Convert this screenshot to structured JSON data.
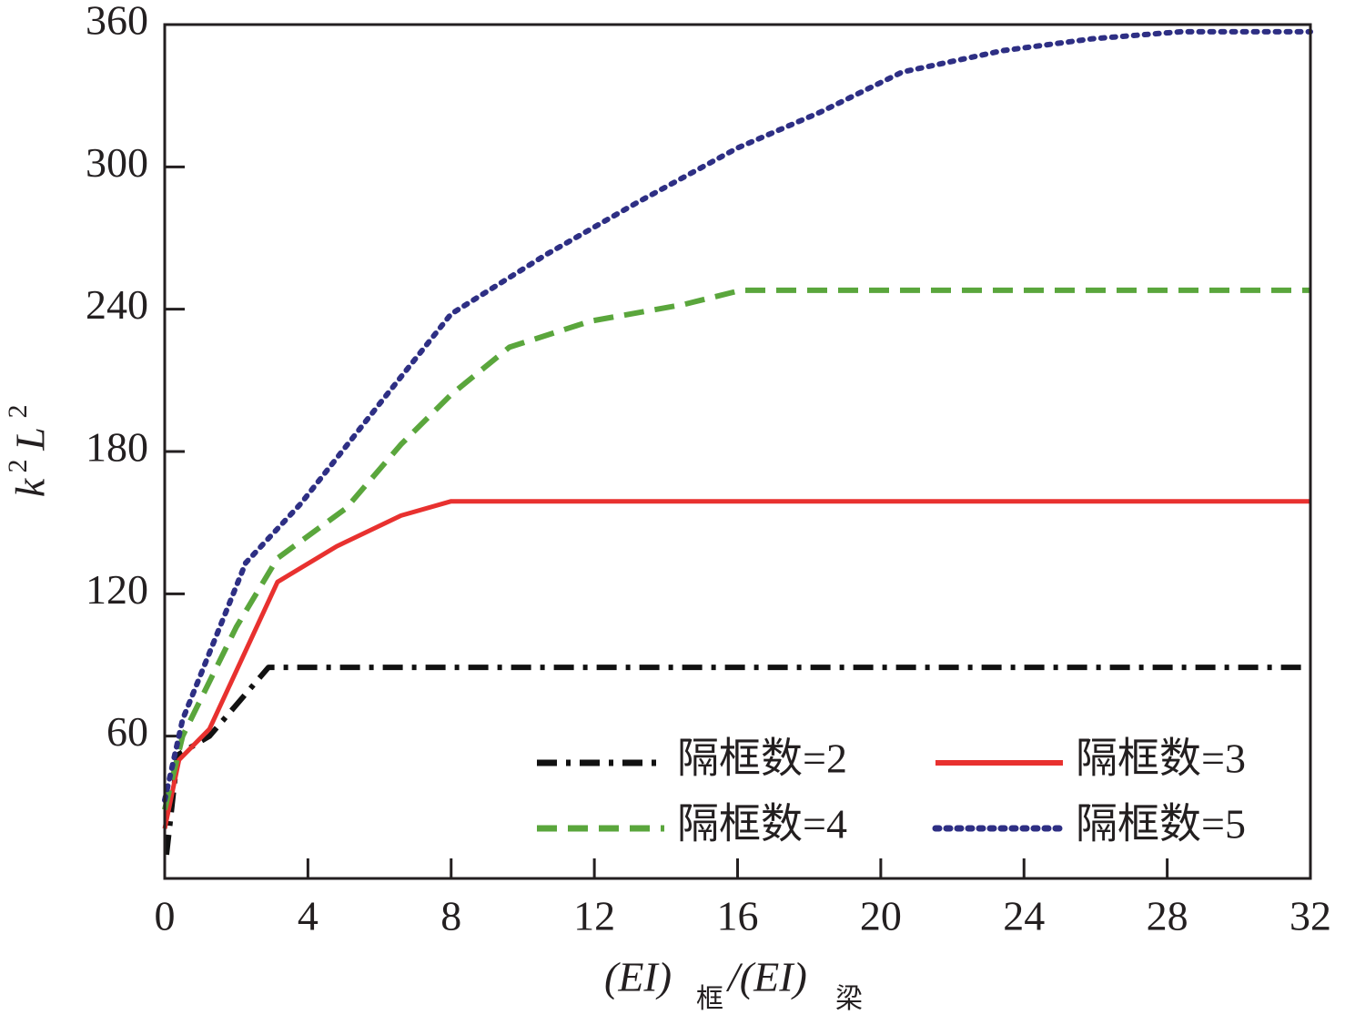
{
  "chart_data": {
    "type": "line",
    "x_label": {
      "part1": "(EI)",
      "sub1": "框",
      "part2": "/(EI)",
      "sub2": "梁"
    },
    "y_label": {
      "base1": "k",
      "sup1": "2",
      "base2": "L",
      "sup2": "2"
    },
    "xlim": [
      0,
      32
    ],
    "xticks": [
      0,
      4,
      8,
      12,
      16,
      20,
      24,
      28,
      32
    ],
    "ylim": [
      0,
      360
    ],
    "yticks": [
      60,
      120,
      180,
      240,
      300,
      360
    ],
    "legend": "lower right",
    "series": [
      {
        "name": "隔框数=2",
        "color": "#111111",
        "dash": "dashdot",
        "x": [
          0.05,
          0.36,
          1.25,
          2.9,
          32
        ],
        "values": [
          10,
          52,
          60,
          89,
          89
        ]
      },
      {
        "name": "隔框数=3",
        "color": "#e8312f",
        "dash": "solid",
        "x": [
          0,
          0.4,
          1.25,
          3.15,
          4.8,
          6.6,
          8,
          32
        ],
        "values": [
          21,
          50,
          63,
          125,
          140,
          153,
          159,
          159
        ]
      },
      {
        "name": "隔框数=4",
        "color": "#5aa63c",
        "dash": "dashed",
        "x": [
          0,
          0.5,
          2,
          3.15,
          5.06,
          6.6,
          8,
          9.63,
          11.9,
          14.5,
          16.1,
          32
        ],
        "values": [
          29,
          60,
          106,
          135,
          156,
          183,
          204,
          224,
          235,
          242,
          248,
          248
        ]
      },
      {
        "name": "隔框数=5",
        "color": "#2e2f84",
        "dash": "dotted",
        "x": [
          0,
          0.5,
          2.26,
          3.8,
          6.1,
          8,
          10.65,
          13.2,
          16,
          18.3,
          20.6,
          23.4,
          25.9,
          28.4,
          32
        ],
        "values": [
          33,
          67,
          133,
          158,
          202,
          238,
          263,
          285,
          308,
          323,
          340,
          349,
          354,
          357,
          357
        ]
      }
    ]
  }
}
